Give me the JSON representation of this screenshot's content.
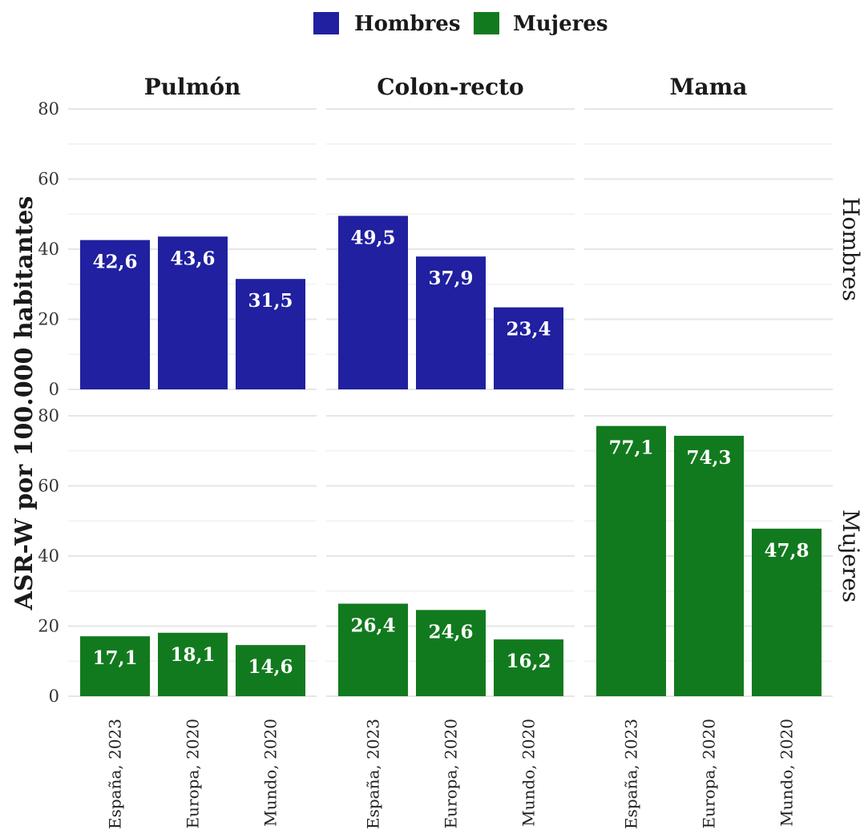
{
  "chart_data": {
    "type": "bar",
    "layout": "facet_grid",
    "ylabel": "ASR-W por 100.000 habitantes",
    "ylim": [
      0,
      80
    ],
    "yticks": [
      0,
      20,
      40,
      60,
      80
    ],
    "grid": true,
    "legend": {
      "position": "top",
      "entries": [
        {
          "name": "Hombres",
          "color": "#2020a0"
        },
        {
          "name": "Mujeres",
          "color": "#127a1e"
        }
      ]
    },
    "columns": [
      "Pulmón",
      "Colon-recto",
      "Mama"
    ],
    "rows": [
      "Hombres",
      "Mujeres"
    ],
    "categories": [
      "España, 2023",
      "Europa, 2020",
      "Mundo, 2020"
    ],
    "series": [
      {
        "name": "Hombres",
        "panels": [
          [
            42.6,
            43.6,
            31.5
          ],
          [
            49.5,
            37.9,
            23.4
          ],
          null
        ]
      },
      {
        "name": "Mujeres",
        "panels": [
          [
            17.1,
            18.1,
            14.6
          ],
          [
            26.4,
            24.6,
            16.2
          ],
          [
            77.1,
            74.3,
            47.8
          ]
        ]
      }
    ],
    "value_labels": [
      [
        [
          "42,6",
          "43,6",
          "31,5"
        ],
        [
          "49,5",
          "37,9",
          "23,4"
        ],
        null
      ],
      [
        [
          "17,1",
          "18,1",
          "14,6"
        ],
        [
          "26,4",
          "24,6",
          "16,2"
        ],
        [
          "77,1",
          "74,3",
          "47,8"
        ]
      ]
    ]
  }
}
